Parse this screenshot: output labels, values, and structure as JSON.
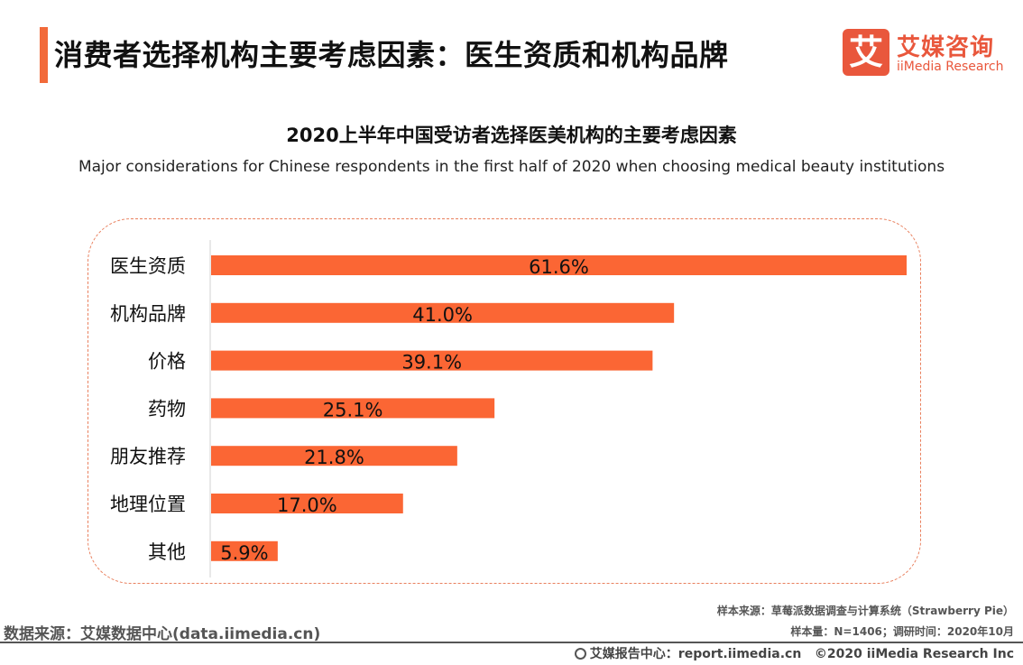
{
  "header": {
    "title": "消费者选择机构主要考虑因素：医生资质和机构品牌",
    "accent_color": "#f26a3a"
  },
  "logo": {
    "mark": "艾",
    "name_cn": "艾媒咨询",
    "name_en": "iiMedia Research",
    "color": "#e9573c"
  },
  "chart_data": {
    "type": "bar",
    "orientation": "horizontal",
    "title": "2020上半年中国受访者选择医美机构的主要考虑因素",
    "subtitle": "Major considerations for Chinese respondents in the first half of 2020 when choosing medical beauty institutions",
    "categories": [
      "医生资质",
      "机构品牌",
      "价格",
      "药物",
      "朋友推荐",
      "地理位置",
      "其他"
    ],
    "values": [
      61.6,
      41.0,
      39.1,
      25.1,
      21.8,
      17.0,
      5.9
    ],
    "value_labels": [
      "61.6%",
      "41.0%",
      "39.1%",
      "25.1%",
      "21.8%",
      "17.0%",
      "5.9%"
    ],
    "xlim": [
      0,
      61.6
    ],
    "bar_color": "#fb6634",
    "grid": false,
    "legend": "none"
  },
  "footer": {
    "sample_source": "样本来源：草莓派数据调查与计算系统（Strawberry Pie）",
    "sample_size": "样本量：N=1406；调研时间：2020年10月",
    "data_source": "数据来源：艾媒数据中心(data.iimedia.cn)",
    "report_center": "艾媒报告中心：report.iimedia.cn",
    "copyright": "©2020  iiMedia Research  Inc"
  }
}
